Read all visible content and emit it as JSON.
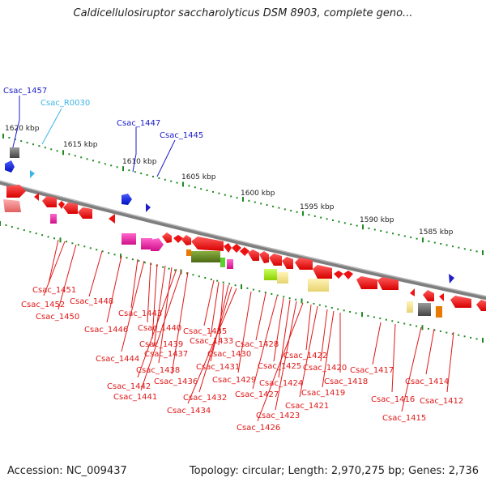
{
  "title": "Caldicellulosiruptor saccharolyticus DSM 8903, complete geno...",
  "footer": {
    "accession": "Accession: NC_009437",
    "summary": "Topology: circular; Length: 2,970,275 bp; Genes: 2,736"
  },
  "scale_labels": [
    "1620 kbp",
    "1615 kbp",
    "1610 kbp",
    "1605 kbp",
    "1600 kbp",
    "1595 kbp",
    "1590 kbp",
    "1585 kbp"
  ],
  "top_gene_labels": [
    {
      "text": "Csac_1457",
      "color": "#1c1cc8"
    },
    {
      "text": "Csac_R0030",
      "color": "#3cb4e6"
    },
    {
      "text": "Csac_1447",
      "color": "#1c1cc8"
    },
    {
      "text": "Csac_1445",
      "color": "#1c1cc8"
    }
  ],
  "bottom_gene_labels": [
    "Csac_1451",
    "Csac_1452",
    "Csac_1450",
    "Csac_1448",
    "Csac_1446",
    "Csac_1443",
    "Csac_1444",
    "Csac_1440",
    "Csac_1439",
    "Csac_1437",
    "Csac_1438",
    "Csac_1442",
    "Csac_1441",
    "Csac_1436",
    "Csac_1435",
    "Csac_1433",
    "Csac_1430",
    "Csac_1431",
    "Csac_1432",
    "Csac_1434",
    "Csac_1429",
    "Csac_1428",
    "Csac_1427",
    "Csac_1425",
    "Csac_1424",
    "Csac_1423",
    "Csac_1426",
    "Csac_1422",
    "Csac_1421",
    "Csac_1420",
    "Csac_1419",
    "Csac_1418",
    "Csac_1417",
    "Csac_1416",
    "Csac_1415",
    "Csac_1414",
    "Csac_1412"
  ],
  "colors": {
    "label_red": "#e01818",
    "gene_red": "#ee1111",
    "backbone": "#8a8a8a",
    "tick_green": "#1f8a1f",
    "label_blue": "#1c1cc8",
    "label_cyan": "#3cb4e6"
  }
}
